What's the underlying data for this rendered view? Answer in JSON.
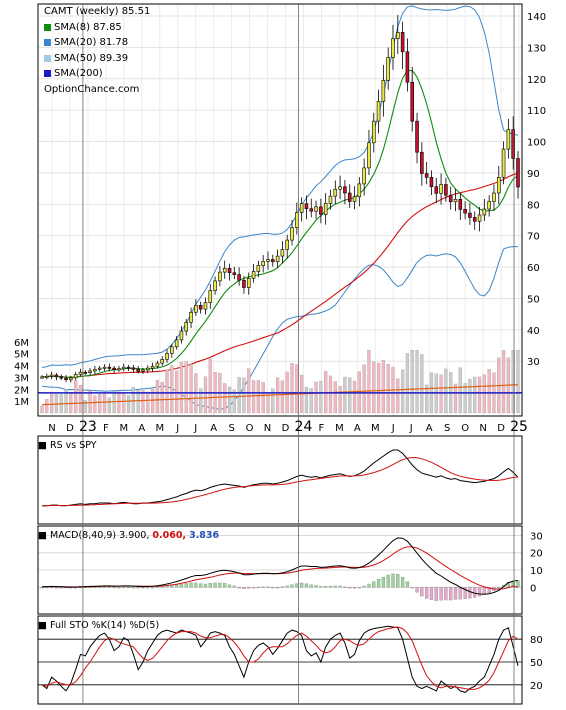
{
  "legend": {
    "title": "CAMT (weekly) 85.51",
    "items": [
      {
        "label": "SMA(8) 87.85",
        "color": "#138a13"
      },
      {
        "label": "SMA(20) 81.78",
        "color": "#3a86c8"
      },
      {
        "label": "SMA(50) 89.39",
        "color": "#9fcbe8"
      },
      {
        "label": "SMA(200)",
        "color": "#1a1ac8"
      }
    ],
    "source": "OptionChance.com"
  },
  "panels": {
    "rs_label": "RS vs SPY",
    "macd_label": "MACD(8,40,9) 3.900,",
    "macd_v1": "0.060,",
    "macd_v2": "3.836",
    "macd_v1_color": "#d01010",
    "macd_v2_color": "#2a4fb8",
    "sto_label": "Full STO %K(14) %D(5)"
  },
  "colors": {
    "up": "#e9e94a",
    "down": "#c8102e",
    "bollinger": "#3a86c8",
    "sma8": "#138a13",
    "sma20": "#3a86c8",
    "sma50": "#d01010",
    "sma200": "#1a1ac8",
    "volume_up": "#f2b8c0",
    "volume_down": "#cccccc",
    "volume_avg": "#e06010"
  },
  "x_labels": [
    "N",
    "D",
    "23",
    "F",
    "M",
    "A",
    "M",
    "J",
    "J",
    "A",
    "S",
    "O",
    "N",
    "D",
    "24",
    "F",
    "M",
    "A",
    "M",
    "J",
    "J",
    "A",
    "S",
    "O",
    "N",
    "D",
    "25"
  ],
  "chart_data": [
    {
      "type": "candlestick",
      "title": "CAMT (weekly) 85.51",
      "ylim": [
        10,
        140
      ],
      "y_ticks": [
        20,
        30,
        40,
        50,
        60,
        70,
        80,
        90,
        100,
        110,
        120,
        130,
        140
      ],
      "y_tick_labels": [
        "",
        "30",
        "40",
        "50",
        "60",
        "70",
        "80",
        "90",
        "100",
        "110",
        "120",
        "130",
        "140"
      ],
      "x_months": [
        "N",
        "D",
        "23",
        "F",
        "M",
        "A",
        "M",
        "J",
        "J",
        "A",
        "S",
        "O",
        "N",
        "D",
        "24",
        "F",
        "M",
        "A",
        "M",
        "J",
        "J",
        "A",
        "S",
        "O",
        "N",
        "D",
        "25"
      ],
      "closes": [
        25,
        25.2,
        25.6,
        25.0,
        24.6,
        24.1,
        24.7,
        25.8,
        26.5,
        26.4,
        26.9,
        27.4,
        27.8,
        28.1,
        27.8,
        27.3,
        27.6,
        28.1,
        27.9,
        27.4,
        26.8,
        27.2,
        27.8,
        28.4,
        29.4,
        30.6,
        32.5,
        34.6,
        36.8,
        39.6,
        42.4,
        45.6,
        47.8,
        46.6,
        48.7,
        52.5,
        55.6,
        58.4,
        59.6,
        58.2,
        57.6,
        55.8,
        53.5,
        56.4,
        58.6,
        60.5,
        61.8,
        62.4,
        61.7,
        63.5,
        65.6,
        68.6,
        72.6,
        77.4,
        80.2,
        78.6,
        77.8,
        79.2,
        76.8,
        80.3,
        82.6,
        84.8,
        85.6,
        83.6,
        80.9,
        82.4,
        86.5,
        91.6,
        99.6,
        106.5,
        112.8,
        119.5,
        126.8,
        132.8,
        134.8,
        128.6,
        118.9,
        106.5,
        96.6,
        89.8,
        88.6,
        85.6,
        83.5,
        86.3,
        82.9,
        80.8,
        81.6,
        78.4,
        77.2,
        75.8,
        74.6,
        76.6,
        78.5,
        80.9,
        83.6,
        88.6,
        97.6,
        103.8,
        94.6,
        85.51
      ],
      "sma8_last": 87.85,
      "sma20_last": 81.78,
      "sma50_last": 89.39,
      "sma200_last": null
    },
    {
      "type": "bar",
      "title": "Volume",
      "ylabel": "",
      "ylim": [
        0,
        7000000
      ],
      "y_ticks": [
        1000000,
        2000000,
        3000000,
        4000000,
        5000000,
        6000000
      ],
      "y_tick_labels": [
        "1M",
        "2M",
        "3M",
        "4M",
        "5M",
        "6M"
      ],
      "reference_line": 1700000
    },
    {
      "type": "line",
      "title": "RS vs SPY",
      "series": [
        {
          "values": [
            0.18,
            0.18,
            0.19,
            0.19,
            0.18,
            0.18,
            0.19,
            0.2,
            0.21,
            0.2,
            0.21,
            0.21,
            0.22,
            0.22,
            0.22,
            0.21,
            0.22,
            0.23,
            0.22,
            0.21,
            0.21,
            0.22,
            0.22,
            0.23,
            0.24,
            0.25,
            0.27,
            0.29,
            0.31,
            0.34,
            0.36,
            0.39,
            0.41,
            0.4,
            0.42,
            0.45,
            0.47,
            0.49,
            0.5,
            0.49,
            0.48,
            0.47,
            0.45,
            0.47,
            0.49,
            0.5,
            0.51,
            0.51,
            0.5,
            0.51,
            0.53,
            0.55,
            0.58,
            0.61,
            0.63,
            0.61,
            0.6,
            0.61,
            0.59,
            0.61,
            0.63,
            0.64,
            0.65,
            0.63,
            0.61,
            0.62,
            0.65,
            0.69,
            0.75,
            0.81,
            0.86,
            0.91,
            0.96,
            1.0,
            1.0,
            0.95,
            0.87,
            0.78,
            0.71,
            0.66,
            0.64,
            0.62,
            0.6,
            0.62,
            0.59,
            0.57,
            0.58,
            0.55,
            0.54,
            0.53,
            0.52,
            0.53,
            0.54,
            0.56,
            0.58,
            0.62,
            0.68,
            0.73,
            0.67,
            0.6
          ]
        }
      ]
    },
    {
      "type": "line",
      "title": "MACD(8,40,9)",
      "ylim": [
        -12,
        32
      ],
      "y_ticks": [
        0,
        10,
        20,
        30
      ],
      "y_tick_labels": [
        "0",
        "10",
        "20",
        "30"
      ],
      "series": [
        {
          "name": "MACD",
          "values": [
            0.3,
            0.4,
            0.5,
            0.4,
            0.3,
            0.1,
            0.0,
            0.1,
            0.3,
            0.4,
            0.5,
            0.6,
            0.7,
            0.8,
            0.8,
            0.7,
            0.7,
            0.8,
            0.8,
            0.7,
            0.5,
            0.4,
            0.5,
            0.6,
            0.9,
            1.3,
            1.9,
            2.6,
            3.3,
            4.2,
            5.1,
            6.1,
            6.8,
            6.8,
            7.2,
            8.1,
            8.9,
            9.6,
            9.9,
            9.5,
            9.0,
            8.2,
            7.2,
            7.3,
            7.6,
            7.9,
            8.1,
            8.1,
            7.8,
            7.9,
            8.3,
            9.0,
            10.0,
            11.3,
            12.3,
            12.3,
            12.0,
            12.0,
            11.5,
            11.7,
            12.0,
            12.3,
            12.5,
            12.0,
            11.2,
            11.0,
            11.4,
            12.3,
            14.0,
            16.2,
            18.7,
            21.4,
            24.3,
            27.0,
            28.6,
            28.4,
            26.6,
            23.3,
            19.8,
            16.3,
            13.3,
            10.6,
            8.1,
            6.5,
            4.7,
            2.9,
            1.6,
            0.0,
            -1.3,
            -2.5,
            -3.5,
            -3.9,
            -4.0,
            -3.7,
            -3.0,
            -1.8,
            0.4,
            2.7,
            3.6,
            3.9
          ]
        },
        {
          "name": "Signal",
          "values": [
            0.3,
            0.3,
            0.4,
            0.4,
            0.4,
            0.3,
            0.2,
            0.2,
            0.2,
            0.3,
            0.3,
            0.4,
            0.5,
            0.6,
            0.6,
            0.6,
            0.7,
            0.7,
            0.7,
            0.7,
            0.7,
            0.6,
            0.6,
            0.6,
            0.6,
            0.8,
            1.0,
            1.4,
            1.8,
            2.3,
            2.9,
            3.6,
            4.3,
            4.8,
            5.3,
            5.8,
            6.4,
            7.1,
            7.6,
            8.0,
            8.2,
            8.2,
            8.0,
            7.9,
            7.8,
            7.8,
            7.9,
            7.9,
            7.9,
            7.9,
            8.0,
            8.2,
            8.6,
            9.2,
            9.8,
            10.3,
            10.6,
            10.9,
            11.0,
            11.1,
            11.3,
            11.5,
            11.7,
            11.8,
            11.7,
            11.5,
            11.5,
            11.6,
            12.1,
            12.9,
            14.0,
            15.5,
            17.2,
            19.2,
            21.1,
            22.6,
            23.4,
            23.4,
            22.7,
            21.4,
            19.8,
            17.9,
            15.9,
            14.0,
            12.1,
            10.3,
            8.6,
            6.9,
            5.3,
            3.8,
            2.4,
            1.2,
            0.2,
            -0.5,
            -1.0,
            -1.2,
            -0.9,
            -0.2,
            0.6,
            0.06
          ]
        }
      ]
    },
    {
      "type": "line",
      "title": "Full STO %K(14) %D(5)",
      "ylim": [
        0,
        100
      ],
      "y_ticks": [
        20,
        50,
        80
      ],
      "y_tick_labels": [
        "20",
        "50",
        "80"
      ],
      "series": [
        {
          "name": "%K",
          "values": [
            20,
            15,
            30,
            25,
            18,
            12,
            22,
            40,
            60,
            58,
            70,
            78,
            85,
            88,
            80,
            65,
            70,
            82,
            78,
            60,
            40,
            50,
            65,
            75,
            85,
            90,
            92,
            90,
            88,
            92,
            90,
            88,
            85,
            70,
            78,
            88,
            90,
            88,
            85,
            70,
            60,
            45,
            30,
            50,
            65,
            72,
            75,
            70,
            60,
            68,
            78,
            88,
            92,
            90,
            85,
            65,
            58,
            62,
            50,
            70,
            80,
            85,
            88,
            75,
            55,
            60,
            78,
            88,
            92,
            94,
            95,
            96,
            97,
            96,
            95,
            80,
            55,
            30,
            18,
            15,
            18,
            15,
            12,
            25,
            20,
            15,
            18,
            12,
            10,
            15,
            18,
            25,
            30,
            45,
            60,
            80,
            92,
            95,
            70,
            45
          ]
        },
        {
          "name": "%D",
          "values": [
            20,
            18,
            22,
            24,
            22,
            20,
            20,
            24,
            32,
            42,
            50,
            60,
            70,
            78,
            82,
            80,
            76,
            74,
            72,
            70,
            62,
            55,
            52,
            55,
            62,
            70,
            78,
            84,
            88,
            90,
            90,
            90,
            88,
            84,
            82,
            82,
            84,
            86,
            86,
            82,
            76,
            68,
            58,
            50,
            50,
            54,
            62,
            68,
            70,
            70,
            70,
            74,
            80,
            85,
            88,
            84,
            78,
            72,
            65,
            62,
            64,
            70,
            78,
            80,
            78,
            74,
            72,
            74,
            80,
            86,
            90,
            92,
            94,
            95,
            96,
            94,
            88,
            78,
            62,
            46,
            32,
            24,
            18,
            16,
            18,
            18,
            17,
            16,
            15,
            14,
            14,
            16,
            20,
            26,
            36,
            50,
            64,
            78,
            84,
            80
          ]
        }
      ]
    }
  ]
}
